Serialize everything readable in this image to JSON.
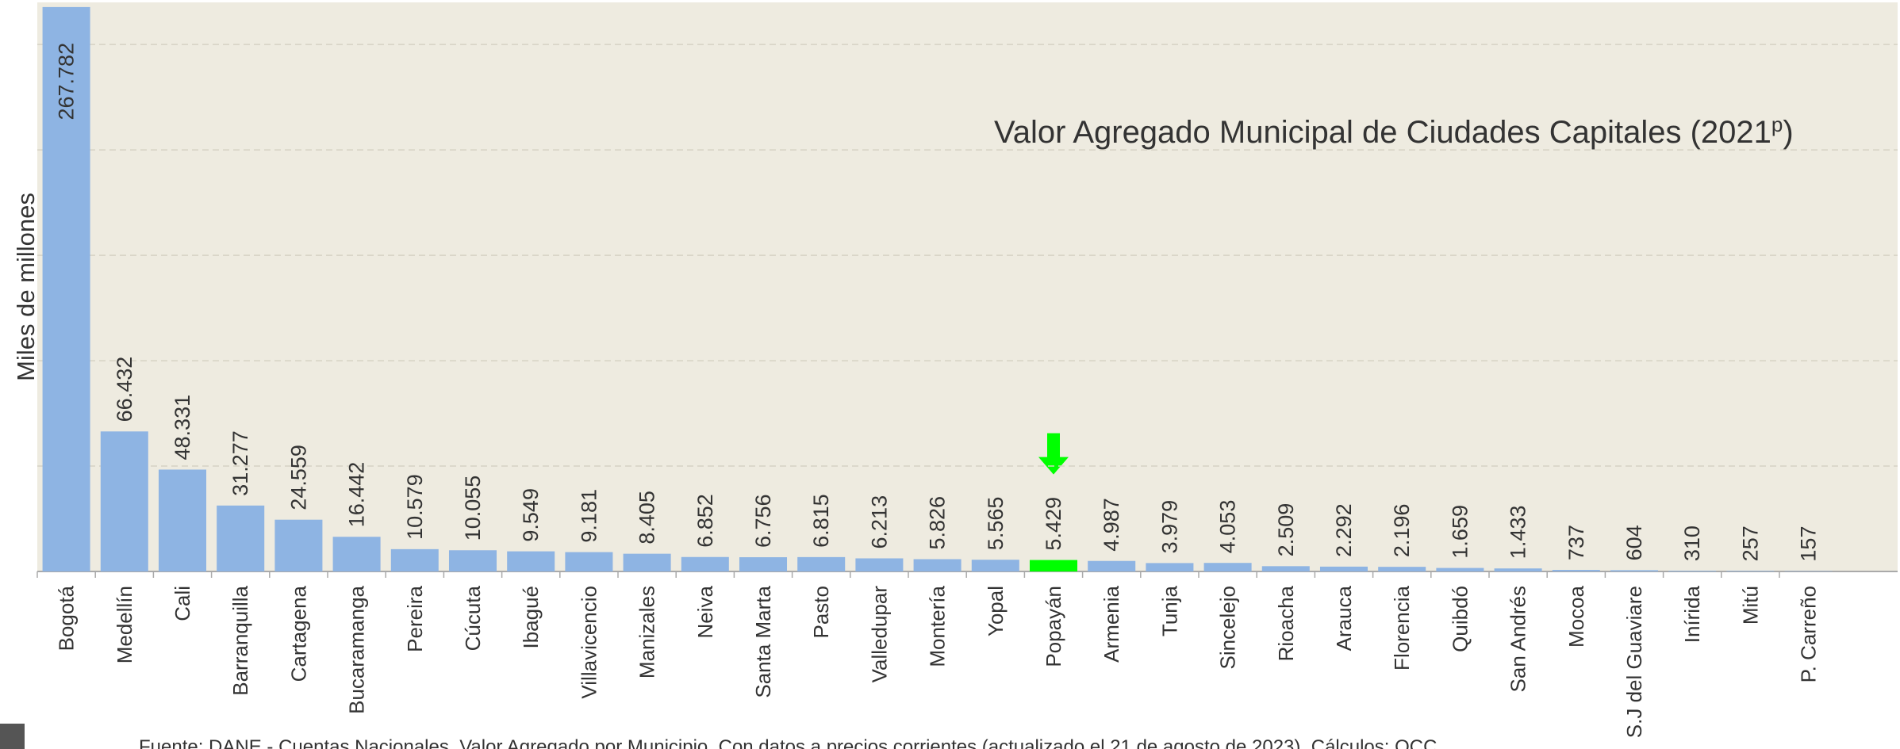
{
  "chart_data": {
    "type": "bar",
    "title": "Valor Agregado Municipal de Ciudades Capitales (2021",
    "title_superscript": "p",
    "title_end": ")",
    "y_label": "Miles de millones",
    "source": "Fuente: DANE - Cuentas Nacionales, Valor Agregado por Municipio. Con datos a precios corrientes (actualizado el 21 de agosto de 2023). Cálculos: OCC",
    "categories": [
      "Bogotá",
      "Medellín",
      "Cali",
      "Barranquilla",
      "Cartagena",
      "Bucaramanga",
      "Pereira",
      "Cúcuta",
      "Ibagué",
      "Villavicencio",
      "Manizales",
      "Neiva",
      "Santa Marta",
      "Pasto",
      "Valledupar",
      "Montería",
      "Yopal",
      "Popayán",
      "Armenia",
      "Tunja",
      "Sincelejo",
      "Rioacha",
      "Arauca",
      "Florencia",
      "Quibdó",
      "San Andrés",
      "Mocoa",
      "S.J del Guaviare",
      "Inírida",
      "Mitú",
      "P. Carreño"
    ],
    "values": [
      267782,
      66432,
      48331,
      31277,
      24559,
      16442,
      10579,
      10055,
      9549,
      9181,
      8405,
      6852,
      6756,
      6815,
      6213,
      5826,
      5565,
      5429,
      4987,
      3979,
      4053,
      2509,
      2292,
      2196,
      1659,
      1433,
      737,
      604,
      310,
      257,
      157
    ],
    "value_labels": [
      "267.782",
      "66.432",
      "48.331",
      "31.277",
      "24.559",
      "16.442",
      "10.579",
      "10.055",
      "9.549",
      "9.181",
      "8.405",
      "6.852",
      "6.756",
      "6.815",
      "6.213",
      "5.826",
      "5.565",
      "5.429",
      "4.987",
      "3.979",
      "4.053",
      "2.509",
      "2.292",
      "2.196",
      "1.659",
      "1.433",
      "737",
      "604",
      "310",
      "257",
      "157"
    ],
    "color": "#8eb4e3",
    "highlight": {
      "category": "Popayán",
      "color": "#00ff00"
    },
    "ylim": [
      0,
      270000
    ],
    "yticks": [
      0,
      50000,
      100000,
      150000,
      200000,
      250000
    ],
    "grid": true
  }
}
